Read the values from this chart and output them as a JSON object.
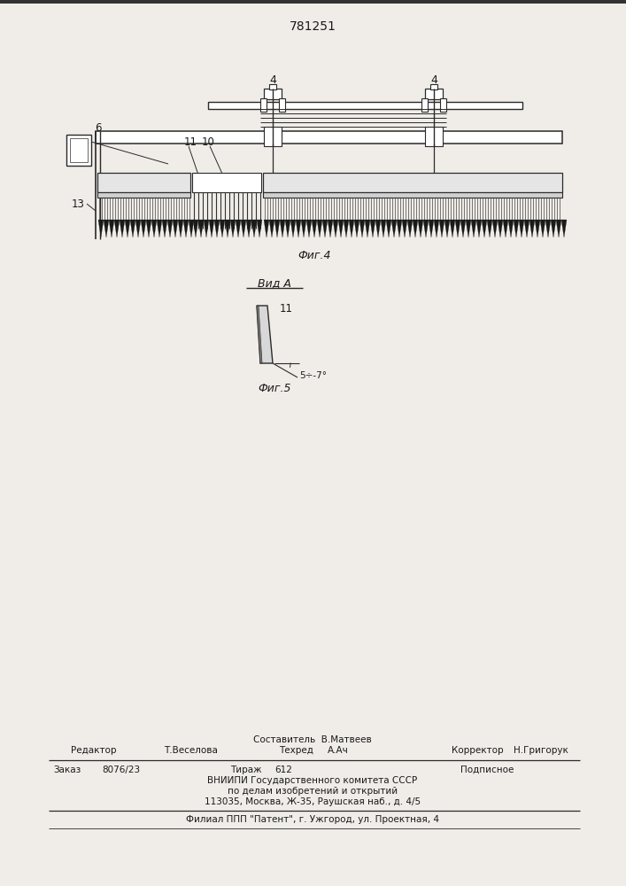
{
  "patent_number": "781251",
  "fig4_label": "Фиг.4",
  "fig5_label": "Фиг.5",
  "vid_a_label": "Вид А",
  "angle_label": "5÷-7°",
  "label_4a": "4",
  "label_4b": "4",
  "label_6": "6",
  "label_10": "10",
  "label_11": "11",
  "label_13": "13",
  "composer_line": "Составитель  В.Матвеев",
  "editor_label": "Редактор",
  "editor_name": "Т.Веселова",
  "techred_label": "Техред",
  "techred_name": "А.Ач",
  "corrector_label": "Корректор",
  "corrector_name": "Н.Григорук",
  "zakaz_label": "Заказ",
  "zakaz_val": "8076/23",
  "tirazh_label": "Тираж",
  "tirazh_val": "612",
  "podpisnoe": "Подписное",
  "vnipi_line": "ВНИИПИ Государственного комитета СССР",
  "po_delam_line": "по делам изобретений и открытий",
  "address_line": "113035, Москва, Ж-35, Раушская наб., д. 4/5",
  "filial_line": "Филиал ППП \"Патент\", г. Ужгород, ул. Проектная, 4",
  "bg_color": "#f0ede8",
  "line_color": "#2a2a2a",
  "text_color": "#1a1a1a"
}
